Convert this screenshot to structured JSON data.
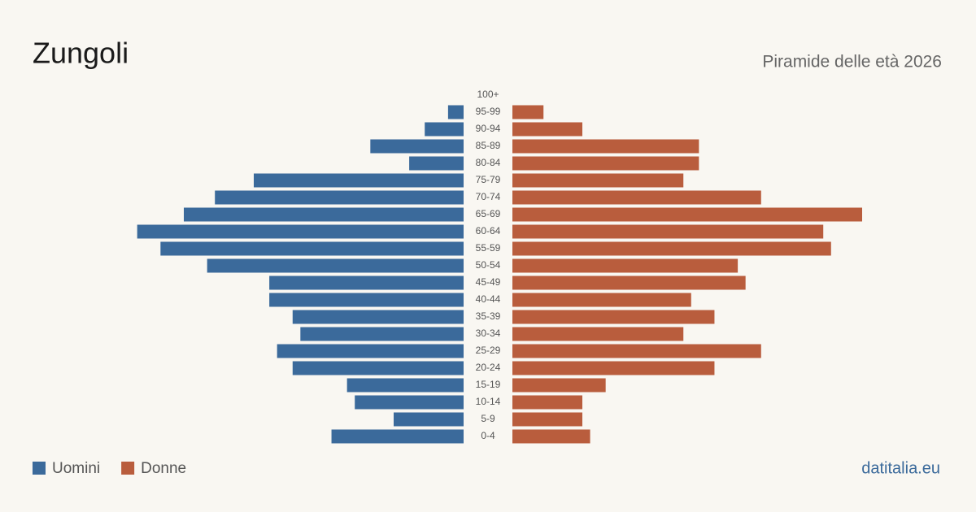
{
  "chart_data": {
    "type": "pyramid",
    "title": "Zungoli",
    "subtitle": "Piramide delle età 2026",
    "source": "datitalia.eu",
    "categories": [
      "100+",
      "95-99",
      "90-94",
      "85-89",
      "80-84",
      "75-79",
      "70-74",
      "65-69",
      "60-64",
      "55-59",
      "50-54",
      "45-49",
      "40-44",
      "35-39",
      "30-34",
      "25-29",
      "20-24",
      "15-19",
      "10-14",
      "5-9",
      "0-4"
    ],
    "series": [
      {
        "name": "Uomini",
        "color": "#3b6a9b",
        "values": [
          0,
          2,
          5,
          12,
          7,
          27,
          32,
          36,
          42,
          39,
          33,
          25,
          25,
          22,
          21,
          24,
          22,
          15,
          14,
          9,
          17
        ]
      },
      {
        "name": "Donne",
        "color": "#b95d3d",
        "values": [
          0,
          4,
          9,
          24,
          24,
          22,
          32,
          45,
          40,
          41,
          29,
          30,
          23,
          26,
          22,
          32,
          26,
          12,
          9,
          9,
          10
        ]
      }
    ]
  }
}
